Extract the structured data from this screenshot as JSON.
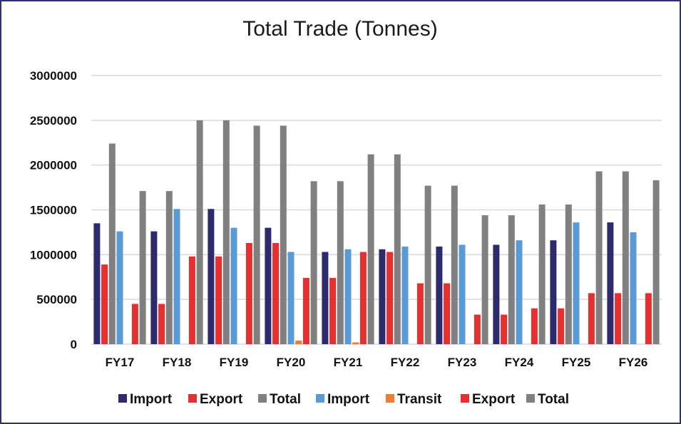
{
  "chart_data": {
    "type": "bar",
    "title": "Total Trade (Tonnes)",
    "xlabel": "",
    "ylabel": "",
    "ylim": [
      0,
      3000000
    ],
    "yticks": [
      0,
      500000,
      1000000,
      1500000,
      2000000,
      2500000,
      3000000
    ],
    "grid": true,
    "legend_position": "bottom",
    "categories": [
      "FY17",
      "FY18",
      "FY19",
      "FY20",
      "FY21",
      "FY22",
      "FY23",
      "FY24",
      "FY25",
      "FY26"
    ],
    "series": [
      {
        "name": "Import",
        "color": "#2e2a6e",
        "values": [
          1350000,
          1260000,
          1510000,
          1300000,
          1030000,
          1060000,
          1090000,
          1110000,
          1160000,
          1360000
        ]
      },
      {
        "name": "Export",
        "color": "#e53030",
        "values": [
          890000,
          450000,
          980000,
          1130000,
          740000,
          1030000,
          680000,
          330000,
          400000,
          570000
        ]
      },
      {
        "name": "Total",
        "color": "#808080",
        "values": [
          2240000,
          1710000,
          2500000,
          2440000,
          1820000,
          2120000,
          1770000,
          1440000,
          1560000,
          1930000
        ]
      },
      {
        "name": "Import",
        "color": "#5b9bd5",
        "values": [
          1260000,
          1510000,
          1300000,
          1030000,
          1060000,
          1090000,
          1110000,
          1160000,
          1360000,
          1250000
        ]
      },
      {
        "name": "Transit",
        "color": "#ed7d31",
        "values": [
          0,
          0,
          0,
          40000,
          20000,
          0,
          0,
          0,
          0,
          0
        ]
      },
      {
        "name": "Export",
        "color": "#e53030",
        "values": [
          450000,
          980000,
          1130000,
          740000,
          1030000,
          680000,
          330000,
          400000,
          570000,
          570000
        ]
      },
      {
        "name": "Total",
        "color": "#808080",
        "values": [
          1710000,
          2500000,
          2440000,
          1820000,
          2120000,
          1770000,
          1440000,
          1560000,
          1930000,
          1830000
        ]
      }
    ]
  }
}
